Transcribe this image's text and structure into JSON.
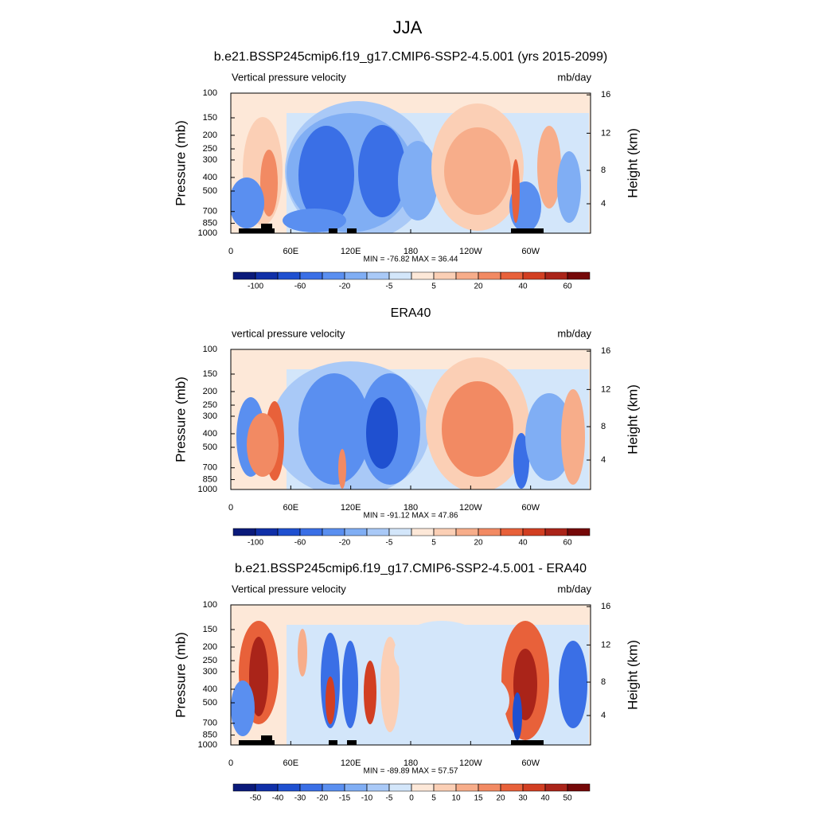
{
  "title": "JJA",
  "chart_data": [
    {
      "type": "contour",
      "title": "b.e21.BSSP245cmip6.f19_g17.CMIP6-SSP2-4.5.001 (yrs 2015-2099)",
      "left_label": "Vertical pressure velocity",
      "right_label": "mb/day",
      "ylabel": "Pressure (mb)",
      "y2label": "Height (km)",
      "log_y": true,
      "land_mask": true,
      "xlim": [
        0,
        360
      ],
      "xticks": [
        0,
        {
          "value": 60,
          "label": "60E"
        },
        {
          "value": 120,
          "label": "120E"
        },
        180,
        {
          "value": 240,
          "label": "120W"
        },
        {
          "value": 300,
          "label": "60W"
        }
      ],
      "ylim": [
        1000,
        100
      ],
      "yticks": [
        100,
        150,
        200,
        250,
        300,
        400,
        500,
        700,
        850,
        1000
      ],
      "y2ticks": [
        4,
        8,
        12,
        16
      ],
      "stats": "MIN = -76.82  MAX =  36.44",
      "levels": [
        -100,
        -80,
        -60,
        -40,
        -20,
        -10,
        -5,
        0,
        5,
        10,
        20,
        30,
        40,
        50,
        60
      ],
      "level_label_step": 2,
      "colors": [
        "#0a1a7a",
        "#1030a8",
        "#1f50d0",
        "#3a6fe6",
        "#5a8ff0",
        "#80aef4",
        "#a9c9f7",
        "#d3e6fa",
        "#fde8d8",
        "#fbcfb5",
        "#f7ad8a",
        "#f28a63",
        "#e8613a",
        "#d23f22",
        "#aa2419",
        "#750808"
      ]
    },
    {
      "type": "contour",
      "title": "ERA40",
      "left_label": "vertical pressure velocity",
      "right_label": "mb/day",
      "ylabel": "Pressure (mb)",
      "y2label": "Height (km)",
      "log_y": true,
      "land_mask": false,
      "xlim": [
        0,
        360
      ],
      "xticks": [
        0,
        {
          "value": 60,
          "label": "60E"
        },
        {
          "value": 120,
          "label": "120E"
        },
        180,
        {
          "value": 240,
          "label": "120W"
        },
        {
          "value": 300,
          "label": "60W"
        }
      ],
      "ylim": [
        1000,
        100
      ],
      "yticks": [
        100,
        150,
        200,
        250,
        300,
        400,
        500,
        700,
        850,
        1000
      ],
      "y2ticks": [
        4,
        8,
        12,
        16
      ],
      "stats": "MIN = -91.12  MAX =  47.86",
      "levels": [
        -100,
        -80,
        -60,
        -40,
        -20,
        -10,
        -5,
        0,
        5,
        10,
        20,
        30,
        40,
        50,
        60
      ],
      "level_label_step": 2,
      "colors": [
        "#0a1a7a",
        "#1030a8",
        "#1f50d0",
        "#3a6fe6",
        "#5a8ff0",
        "#80aef4",
        "#a9c9f7",
        "#d3e6fa",
        "#fde8d8",
        "#fbcfb5",
        "#f7ad8a",
        "#f28a63",
        "#e8613a",
        "#d23f22",
        "#aa2419",
        "#750808"
      ]
    },
    {
      "type": "contour",
      "title": "b.e21.BSSP245cmip6.f19_g17.CMIP6-SSP2-4.5.001 - ERA40",
      "left_label": "Vertical pressure velocity",
      "right_label": "mb/day",
      "ylabel": "Pressure (mb)",
      "y2label": "Height (km)",
      "log_y": true,
      "land_mask": true,
      "xlim": [
        0,
        360
      ],
      "xticks": [
        0,
        {
          "value": 60,
          "label": "60E"
        },
        {
          "value": 120,
          "label": "120E"
        },
        180,
        {
          "value": 240,
          "label": "120W"
        },
        {
          "value": 300,
          "label": "60W"
        }
      ],
      "ylim": [
        1000,
        100
      ],
      "yticks": [
        100,
        150,
        200,
        250,
        300,
        400,
        500,
        700,
        850,
        1000
      ],
      "y2ticks": [
        4,
        8,
        12,
        16
      ],
      "stats": "MIN = -89.89  MAX =  57.57",
      "levels": [
        -50,
        -40,
        -30,
        -20,
        -15,
        -10,
        -5,
        0,
        5,
        10,
        15,
        20,
        30,
        40,
        50
      ],
      "level_label_step": 1,
      "colors": [
        "#0a1a7a",
        "#1030a8",
        "#1f50d0",
        "#3a6fe6",
        "#5a8ff0",
        "#80aef4",
        "#a9c9f7",
        "#d3e6fa",
        "#fde8d8",
        "#fbcfb5",
        "#f7ad8a",
        "#f28a63",
        "#e8613a",
        "#d23f22",
        "#aa2419",
        "#750808"
      ]
    }
  ]
}
